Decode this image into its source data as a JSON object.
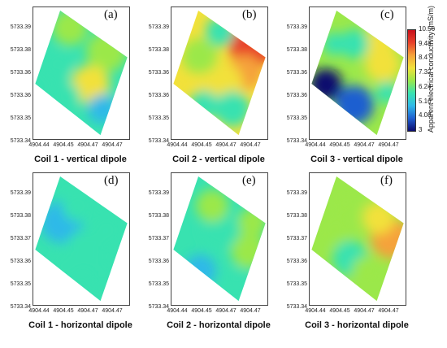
{
  "chart_data": [
    {
      "type": "heatmap",
      "panel_label": "(a)",
      "title": "Coil 1 - vertical dipole",
      "yticks": [
        "5733.39",
        "5733.38",
        "5733.36",
        "5733.36",
        "5733.35",
        "5733.34"
      ],
      "xticks": [
        "4904.44",
        "4904.45",
        "4904.47",
        "4904.47"
      ],
      "dominant_value": 6.0
    },
    {
      "type": "heatmap",
      "panel_label": "(b)",
      "title": "Coil 2 - vertical dipole",
      "yticks": [
        "5733.39",
        "5733.38",
        "5733.36",
        "5733.36",
        "5733.35",
        "5733.34"
      ],
      "xticks": [
        "4904.44",
        "4904.45",
        "4904.47",
        "4904.47"
      ],
      "dominant_value": 8.0
    },
    {
      "type": "heatmap",
      "panel_label": "(c)",
      "title": "Coil 3 - vertical dipole",
      "yticks": [
        "5733.39",
        "5733.38",
        "5733.36",
        "5733.36",
        "5733.35",
        "5733.34"
      ],
      "xticks": [
        "4904.44",
        "4904.45",
        "4904.47",
        "4904.47"
      ],
      "dominant_value": 6.5
    },
    {
      "type": "heatmap",
      "panel_label": "(d)",
      "title": "Coil 1 - horizontal dipole",
      "yticks": [
        "5733.39",
        "5733.38",
        "5733.37",
        "5733.36",
        "5733.35",
        "5733.34"
      ],
      "xticks": [
        "4904.44",
        "4904.45",
        "4904.47",
        "4904.47"
      ],
      "dominant_value": 5.5
    },
    {
      "type": "heatmap",
      "panel_label": "(e)",
      "title": "Coil 2 - horizontal dipole",
      "yticks": [
        "5733.39",
        "5733.38",
        "5733.37",
        "5733.36",
        "5733.35",
        "5733.34"
      ],
      "xticks": [
        "4904.44",
        "4904.45",
        "4904.47",
        "4904.47"
      ],
      "dominant_value": 6.0
    },
    {
      "type": "heatmap",
      "panel_label": "(f)",
      "title": "Coil 3 - horizontal dipole",
      "yticks": [
        "5733.39",
        "5733.38",
        "5733.37",
        "5733.36",
        "5733.35",
        "5733.34"
      ],
      "xticks": [
        "4904.44",
        "4904.45",
        "4904.47",
        "4904.47"
      ],
      "dominant_value": 7.0
    }
  ],
  "colorbar": {
    "label": "Apparent electrical conductivity (mS/m)",
    "ticks": [
      "10.56",
      "9.48",
      "8.4",
      "7.32",
      "6.24",
      "5.16",
      "4.08",
      "3"
    ],
    "range": [
      3,
      10.56
    ],
    "colors": [
      "#0b0b6e",
      "#1f5fd0",
      "#2fb9e8",
      "#38e2b0",
      "#9be84a",
      "#f2e13a",
      "#f5a23a",
      "#e8412a",
      "#c80f1a"
    ]
  }
}
